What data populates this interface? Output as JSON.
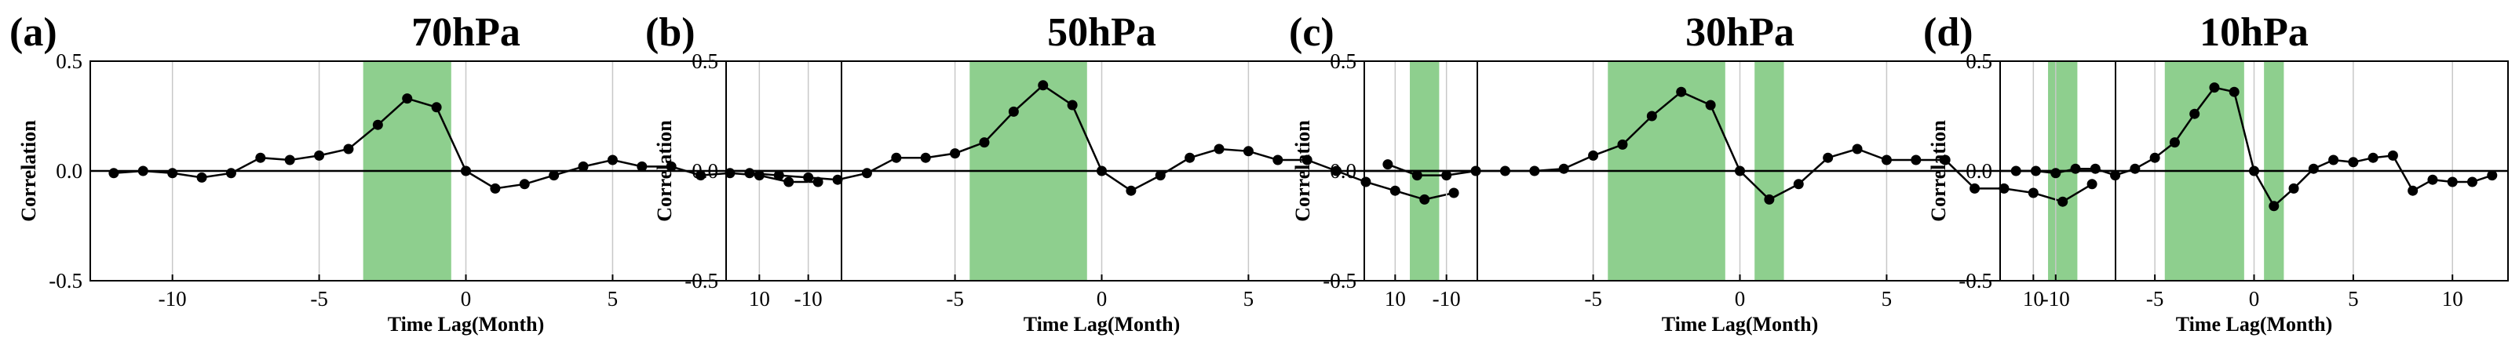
{
  "chart_data": [
    {
      "type": "line",
      "panel_label": "(a)",
      "title": "70hPa",
      "xlabel": "Time Lag(Month)",
      "ylabel": "Correlation",
      "xlim": [
        -12.8,
        12.8
      ],
      "ylim": [
        -0.5,
        0.5
      ],
      "xticks": [
        -10,
        -5,
        0,
        5,
        10
      ],
      "xtick_labels": [
        "-10",
        "-5",
        "0",
        "5",
        "10"
      ],
      "yticks": [
        -0.5,
        0.0,
        0.5
      ],
      "ytick_labels": [
        "-0.5",
        "0.0",
        "0.5"
      ],
      "grid": "vertical",
      "zero_line": true,
      "shaded_ranges": [
        [
          -3.5,
          -0.5
        ]
      ],
      "shade_color": "#8ecf8e",
      "x": [
        -12,
        -11,
        -10,
        -9,
        -8,
        -7,
        -6,
        -5,
        -4,
        -3,
        -2,
        -1,
        0,
        1,
        2,
        3,
        4,
        5,
        6,
        7,
        8,
        9,
        10,
        11,
        12
      ],
      "values": [
        -0.01,
        0.0,
        -0.01,
        -0.03,
        -0.01,
        0.06,
        0.05,
        0.07,
        0.1,
        0.21,
        0.33,
        0.29,
        0.0,
        -0.08,
        -0.06,
        -0.02,
        0.02,
        0.05,
        0.02,
        0.02,
        -0.02,
        -0.01,
        -0.02,
        -0.05,
        -0.05
      ]
    },
    {
      "type": "line",
      "panel_label": "(b)",
      "title": "50hPa",
      "xlabel": "Time Lag(Month)",
      "ylabel": "Correlation",
      "xlim": [
        -12.8,
        12.8
      ],
      "ylim": [
        -0.5,
        0.5
      ],
      "xticks": [
        -10,
        -5,
        0,
        5,
        10
      ],
      "xtick_labels": [
        "-10",
        "-5",
        "0",
        "5",
        "10"
      ],
      "yticks": [
        -0.5,
        0.0,
        0.5
      ],
      "ytick_labels": [
        "-0.5",
        "0.0",
        "0.5"
      ],
      "grid": "vertical",
      "zero_line": true,
      "shaded_ranges": [
        [
          -4.5,
          -0.5
        ],
        [
          10.5,
          11.5
        ]
      ],
      "shade_color": "#8ecf8e",
      "x": [
        -12,
        -11,
        -10,
        -9,
        -8,
        -7,
        -6,
        -5,
        -4,
        -3,
        -2,
        -1,
        0,
        1,
        2,
        3,
        4,
        5,
        6,
        7,
        8,
        9,
        10,
        11,
        12
      ],
      "values": [
        -0.01,
        -0.02,
        -0.03,
        -0.04,
        -0.01,
        0.06,
        0.06,
        0.08,
        0.13,
        0.27,
        0.39,
        0.3,
        0.0,
        -0.09,
        -0.02,
        0.06,
        0.1,
        0.09,
        0.05,
        0.05,
        0.0,
        -0.05,
        -0.09,
        -0.13,
        -0.1
      ]
    },
    {
      "type": "line",
      "panel_label": "(c)",
      "title": "30hPa",
      "xlabel": "Time Lag(Month)",
      "ylabel": "Correlation",
      "xlim": [
        -12.8,
        12.8
      ],
      "ylim": [
        -0.5,
        0.5
      ],
      "xticks": [
        -10,
        -5,
        0,
        5,
        10
      ],
      "xtick_labels": [
        "-10",
        "-5",
        "0",
        "5",
        "10"
      ],
      "yticks": [
        -0.5,
        0.0,
        0.5
      ],
      "ytick_labels": [
        "-0.5",
        "0.0",
        "0.5"
      ],
      "grid": "vertical",
      "zero_line": true,
      "shaded_ranges": [
        [
          -4.5,
          -0.5
        ],
        [
          0.5,
          1.5
        ],
        [
          10.5,
          11.5
        ]
      ],
      "shade_color": "#8ecf8e",
      "x": [
        -12,
        -11,
        -10,
        -9,
        -8,
        -7,
        -6,
        -5,
        -4,
        -3,
        -2,
        -1,
        0,
        1,
        2,
        3,
        4,
        5,
        6,
        7,
        8,
        9,
        10,
        11,
        12
      ],
      "values": [
        0.03,
        -0.02,
        -0.02,
        0.0,
        0.0,
        0.0,
        0.01,
        0.07,
        0.12,
        0.25,
        0.36,
        0.3,
        0.0,
        -0.13,
        -0.06,
        0.06,
        0.1,
        0.05,
        0.05,
        0.05,
        -0.08,
        -0.08,
        -0.1,
        -0.14,
        -0.06
      ]
    },
    {
      "type": "line",
      "panel_label": "(d)",
      "title": "10hPa",
      "xlabel": "Time Lag(Month)",
      "ylabel": "Correlation",
      "xlim": [
        -12.8,
        12.8
      ],
      "ylim": [
        -0.5,
        0.5
      ],
      "xticks": [
        -10,
        -5,
        0,
        5,
        10
      ],
      "xtick_labels": [
        "-10",
        "-5",
        "0",
        "5",
        "10"
      ],
      "yticks": [
        -0.5,
        0.0,
        0.5
      ],
      "ytick_labels": [
        "-0.5",
        "0.0",
        "0.5"
      ],
      "grid": "vertical",
      "zero_line": true,
      "shaded_ranges": [
        [
          -4.5,
          -0.5
        ],
        [
          0.5,
          1.5
        ]
      ],
      "shade_color": "#8ecf8e",
      "x": [
        -12,
        -11,
        -10,
        -9,
        -8,
        -7,
        -6,
        -5,
        -4,
        -3,
        -2,
        -1,
        0,
        1,
        2,
        3,
        4,
        5,
        6,
        7,
        8,
        9,
        10,
        11,
        12
      ],
      "values": [
        0.0,
        0.0,
        -0.01,
        0.01,
        0.01,
        -0.02,
        0.01,
        0.06,
        0.13,
        0.26,
        0.38,
        0.36,
        0.0,
        -0.16,
        -0.08,
        0.01,
        0.05,
        0.04,
        0.06,
        0.07,
        -0.09,
        -0.04,
        -0.05,
        -0.05,
        -0.02
      ]
    }
  ]
}
